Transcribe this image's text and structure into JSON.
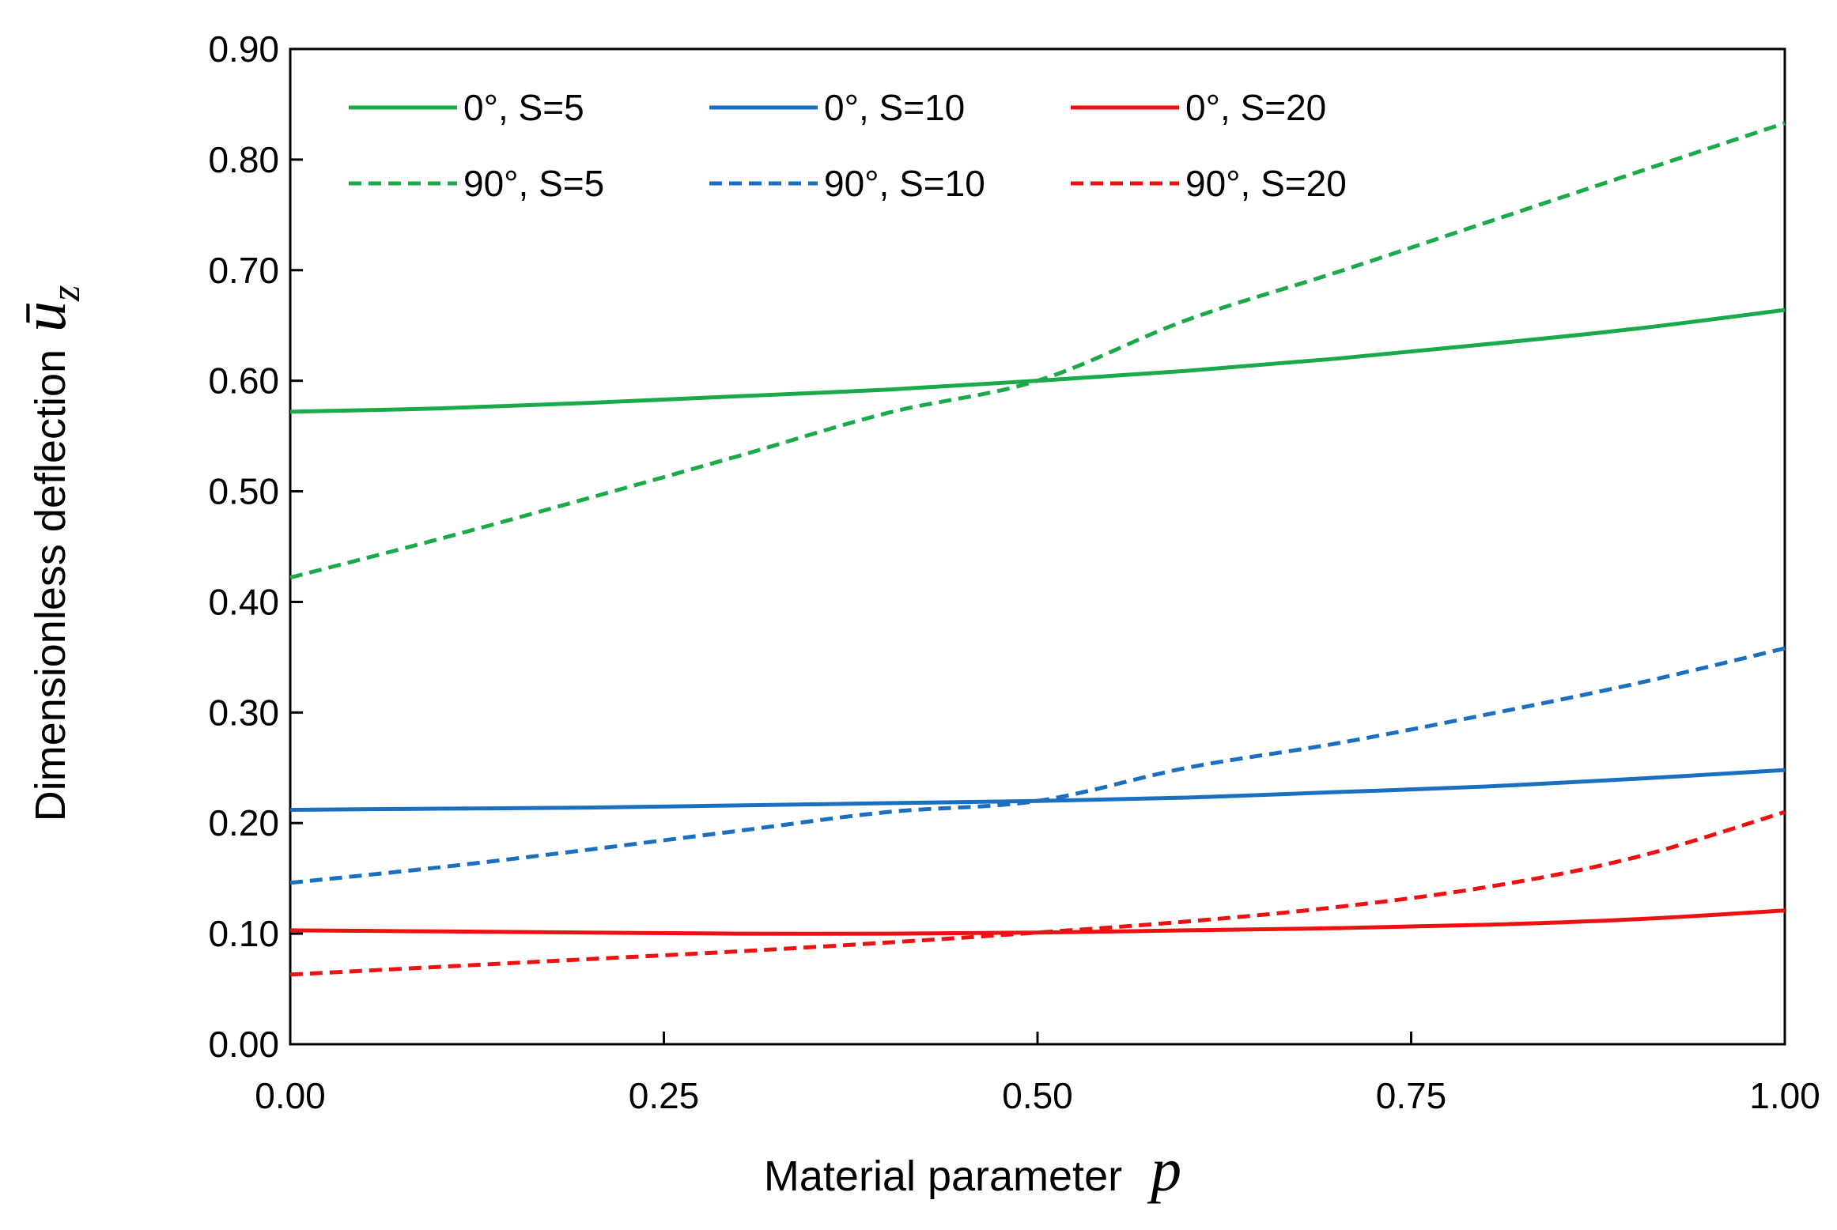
{
  "chart_data": {
    "type": "line",
    "title": "",
    "xlabel": "Material parameter",
    "xlabel_symbol": "p",
    "ylabel": "Dimensionless deflection",
    "ylabel_symbol": "ū",
    "ylabel_subscript": "z",
    "xlim": [
      0,
      1
    ],
    "ylim": [
      0,
      0.9
    ],
    "x_ticks": [
      "0.00",
      "0.25",
      "0.50",
      "0.75",
      "1.00"
    ],
    "y_ticks": [
      "0.00",
      "0.10",
      "0.20",
      "0.30",
      "0.40",
      "0.50",
      "0.60",
      "0.70",
      "0.80",
      "0.90"
    ],
    "grid": false,
    "legend_position": "top, inside plot, 3 columns x 2 rows",
    "x": [
      0.0,
      0.1,
      0.2,
      0.3,
      0.4,
      0.5,
      0.6,
      0.7,
      0.8,
      0.9,
      1.0
    ],
    "series": [
      {
        "name": "0°, S=5",
        "color": "#1aaa4a",
        "dash": "solid",
        "values": [
          0.572,
          0.575,
          0.58,
          0.586,
          0.592,
          0.6,
          0.609,
          0.62,
          0.633,
          0.647,
          0.664
        ]
      },
      {
        "name": "0°, S=10",
        "color": "#1b6fc0",
        "dash": "solid",
        "values": [
          0.212,
          0.213,
          0.214,
          0.216,
          0.218,
          0.22,
          0.223,
          0.228,
          0.233,
          0.24,
          0.248
        ]
      },
      {
        "name": "0°, S=20",
        "color": "#ee1111",
        "dash": "solid",
        "values": [
          0.103,
          0.102,
          0.101,
          0.1,
          0.1,
          0.101,
          0.103,
          0.105,
          0.108,
          0.113,
          0.121
        ]
      },
      {
        "name": "90°, S=5",
        "color": "#1aaa4a",
        "dash": "dashed",
        "values": [
          0.422,
          0.457,
          0.494,
          0.532,
          0.571,
          0.6,
          0.655,
          0.698,
          0.743,
          0.788,
          0.833
        ]
      },
      {
        "name": "90°, S=10",
        "color": "#1b6fc0",
        "dash": "dashed",
        "values": [
          0.146,
          0.16,
          0.176,
          0.193,
          0.21,
          0.22,
          0.25,
          0.272,
          0.298,
          0.326,
          0.358
        ]
      },
      {
        "name": "90°, S=20",
        "color": "#ee1111",
        "dash": "dashed",
        "values": [
          0.063,
          0.07,
          0.077,
          0.084,
          0.092,
          0.101,
          0.111,
          0.124,
          0.142,
          0.169,
          0.21
        ]
      }
    ]
  }
}
